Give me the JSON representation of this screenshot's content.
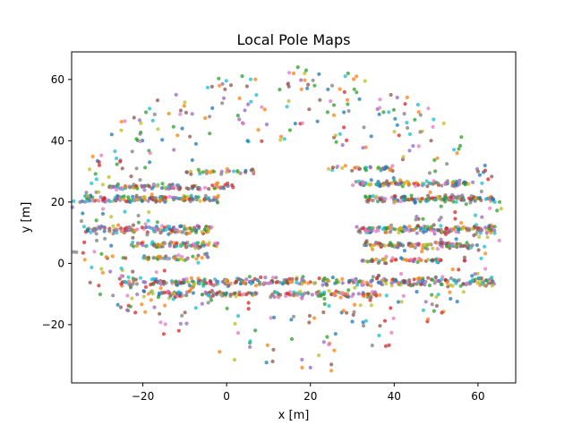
{
  "chart_data": {
    "type": "scatter",
    "title": "Local Pole Maps",
    "xlabel": "x [m]",
    "ylabel": "y [m]",
    "xlim": [
      -37,
      69
    ],
    "ylim": [
      -39,
      69
    ],
    "xticks": [
      -20,
      0,
      20,
      40,
      60
    ],
    "yticks": [
      -20,
      0,
      20,
      40,
      60
    ],
    "xtick_labels": [
      "−20",
      "0",
      "20",
      "40",
      "60"
    ],
    "ytick_labels": [
      "−20",
      "0",
      "20",
      "40",
      "60"
    ],
    "grid": false,
    "legend": "none",
    "point_colors": [
      "#1f77b4",
      "#ff7f0e",
      "#2ca02c",
      "#d62728",
      "#9467bd",
      "#8c564b",
      "#e377c2",
      "#7f7f7f",
      "#bcbd22",
      "#17becf"
    ],
    "point_alpha": 0.75,
    "bands": [
      {
        "y": 21,
        "x_min": -34,
        "x_max": -2,
        "spread": 1.4,
        "count": 140
      },
      {
        "y": 25,
        "x_min": -28,
        "x_max": 2,
        "spread": 1.2,
        "count": 90
      },
      {
        "y": 30,
        "x_min": -10,
        "x_max": 8,
        "spread": 1.0,
        "count": 30
      },
      {
        "y": 11,
        "x_min": -34,
        "x_max": -3,
        "spread": 1.5,
        "count": 130
      },
      {
        "y": 6,
        "x_min": -24,
        "x_max": -2,
        "spread": 1.3,
        "count": 70
      },
      {
        "y": 2,
        "x_min": -20,
        "x_max": -4,
        "spread": 1.2,
        "count": 40
      },
      {
        "y": -6,
        "x_min": -26,
        "x_max": 64,
        "spread": 1.8,
        "count": 320
      },
      {
        "y": -10,
        "x_min": -20,
        "x_max": 36,
        "spread": 1.4,
        "count": 160
      },
      {
        "y": 21,
        "x_min": 33,
        "x_max": 64,
        "spread": 1.4,
        "count": 140
      },
      {
        "y": 26,
        "x_min": 30,
        "x_max": 58,
        "spread": 1.2,
        "count": 100
      },
      {
        "y": 31,
        "x_min": 24,
        "x_max": 40,
        "spread": 1.0,
        "count": 35
      },
      {
        "y": 11,
        "x_min": 31,
        "x_max": 64,
        "spread": 1.5,
        "count": 150
      },
      {
        "y": 6,
        "x_min": 31,
        "x_max": 58,
        "spread": 1.3,
        "count": 90
      },
      {
        "y": 1,
        "x_min": 32,
        "x_max": 52,
        "spread": 1.2,
        "count": 45
      }
    ],
    "ring": {
      "cx": 14,
      "cy": 15,
      "rx_in": 26,
      "rx_out": 52,
      "ry_in": 22,
      "ry_out": 48,
      "count": 520
    },
    "outliers": [
      [
        17,
        64
      ],
      [
        19,
        63
      ],
      [
        16,
        62
      ],
      [
        29,
        62
      ],
      [
        31,
        61
      ],
      [
        21,
        58
      ],
      [
        11,
        -32
      ],
      [
        18,
        -34
      ],
      [
        20,
        -34
      ],
      [
        25,
        -33
      ],
      [
        25,
        -35
      ],
      [
        22,
        -30
      ],
      [
        24,
        -24
      ],
      [
        26,
        -23
      ],
      [
        30,
        -19
      ],
      [
        38,
        -27
      ],
      [
        -34,
        12
      ],
      [
        -35,
        20
      ],
      [
        63,
        11
      ],
      [
        64,
        20
      ],
      [
        64,
        12
      ],
      [
        3,
        47
      ],
      [
        5,
        40
      ],
      [
        55,
        36
      ],
      [
        60,
        30
      ]
    ]
  }
}
